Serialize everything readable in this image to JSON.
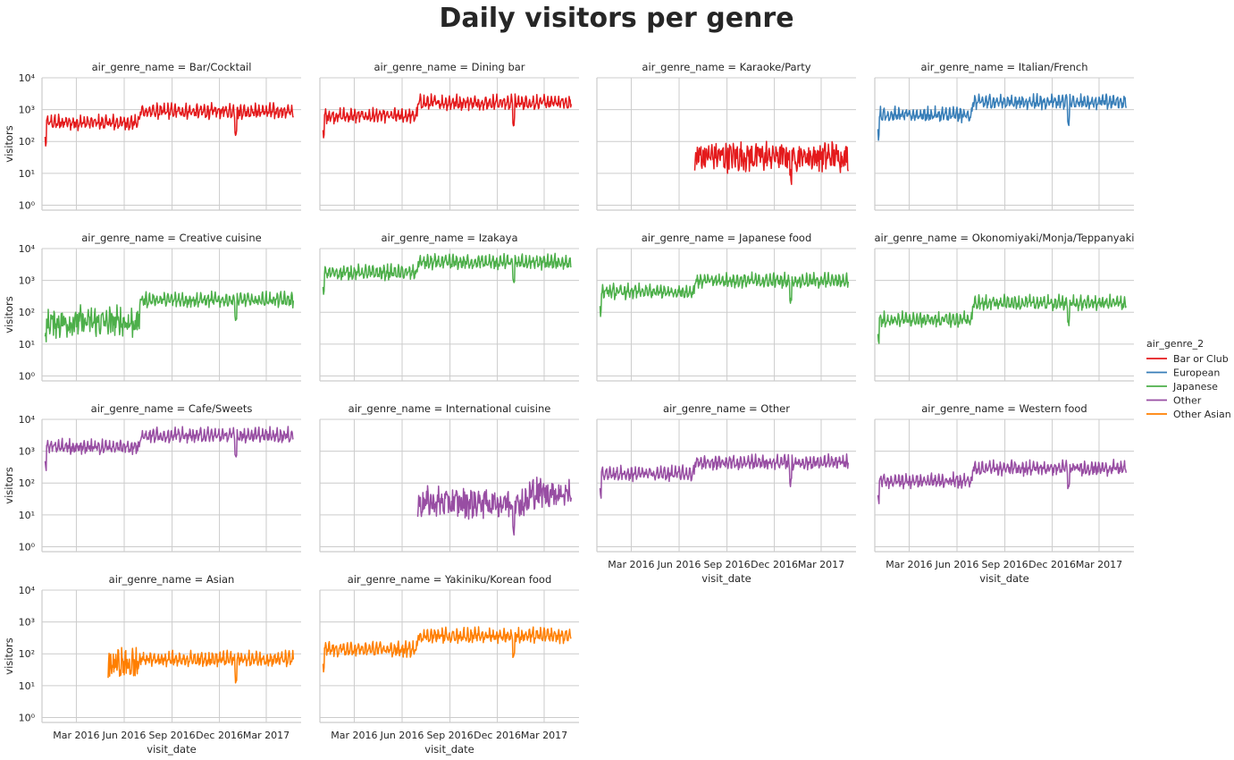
{
  "figure": {
    "title": "Daily visitors per genre"
  },
  "legend": {
    "title": "air_genre_2",
    "items": [
      {
        "label": "Bar or Club",
        "color": "#e41a1c"
      },
      {
        "label": "European",
        "color": "#377eb8"
      },
      {
        "label": "Japanese",
        "color": "#4daf4a"
      },
      {
        "label": "Other",
        "color": "#984ea3"
      },
      {
        "label": "Other Asian",
        "color": "#ff7f00"
      }
    ]
  },
  "axes_text": {
    "ylabel": "visitors",
    "xlabel": "visit_date",
    "x_ticks": [
      "Mar 2016",
      "Jun 2016",
      "Sep 2016",
      "Dec 2016",
      "Mar 2017"
    ],
    "y_ticks": [
      "10⁰",
      "10¹",
      "10²",
      "10³",
      "10⁴"
    ]
  },
  "chart_data": {
    "type": "line",
    "y_scale": "log",
    "ylim": [
      0.7,
      10000
    ],
    "xlim": [
      "2015-12-26",
      "2017-05-07"
    ],
    "grid": true,
    "legend_position": "right",
    "panels": [
      {
        "title": "air_genre_name = Bar/Cocktail",
        "genre_group": "Bar or Club",
        "start": "2016-01-01",
        "end": "2017-04-22",
        "segments": [
          {
            "from": "2016-01-01",
            "level": 400
          },
          {
            "from": "2016-07-01",
            "level": 900
          }
        ]
      },
      {
        "title": "air_genre_name = Dining bar",
        "genre_group": "Bar or Club",
        "start": "2016-01-01",
        "end": "2017-04-22",
        "segments": [
          {
            "from": "2016-01-01",
            "level": 650
          },
          {
            "from": "2016-07-01",
            "level": 1700
          }
        ]
      },
      {
        "title": "air_genre_name = Karaoke/Party",
        "genre_group": "Bar or Club",
        "start": "2016-07-01",
        "end": "2017-04-22",
        "segments": [
          {
            "from": "2016-07-01",
            "level": 35
          }
        ]
      },
      {
        "title": "air_genre_name = Italian/French",
        "genre_group": "European",
        "start": "2016-01-01",
        "end": "2017-04-22",
        "segments": [
          {
            "from": "2016-01-01",
            "level": 700
          },
          {
            "from": "2016-07-01",
            "level": 1800
          }
        ]
      },
      {
        "title": "air_genre_name = Creative cuisine",
        "genre_group": "Japanese",
        "start": "2016-01-01",
        "end": "2017-04-22",
        "segments": [
          {
            "from": "2016-01-01",
            "level": 50
          },
          {
            "from": "2016-07-01",
            "level": 250
          }
        ]
      },
      {
        "title": "air_genre_name = Izakaya",
        "genre_group": "Japanese",
        "start": "2016-01-01",
        "end": "2017-04-22",
        "segments": [
          {
            "from": "2016-01-01",
            "level": 1800
          },
          {
            "from": "2016-07-01",
            "level": 3800
          }
        ]
      },
      {
        "title": "air_genre_name = Japanese food",
        "genre_group": "Japanese",
        "start": "2016-01-01",
        "end": "2017-04-22",
        "segments": [
          {
            "from": "2016-01-01",
            "level": 450
          },
          {
            "from": "2016-07-01",
            "level": 1000
          }
        ]
      },
      {
        "title": "air_genre_name = Okonomiyaki/Monja/Teppanyaki",
        "genre_group": "Japanese",
        "start": "2016-01-01",
        "end": "2017-04-22",
        "segments": [
          {
            "from": "2016-01-01",
            "level": 60
          },
          {
            "from": "2016-07-01",
            "level": 200
          }
        ]
      },
      {
        "title": "air_genre_name = Cafe/Sweets",
        "genre_group": "Other",
        "start": "2016-01-01",
        "end": "2017-04-22",
        "segments": [
          {
            "from": "2016-01-01",
            "level": 1400
          },
          {
            "from": "2016-07-01",
            "level": 3200
          }
        ]
      },
      {
        "title": "air_genre_name = International cuisine",
        "genre_group": "Other",
        "start": "2016-07-01",
        "end": "2017-04-22",
        "segments": [
          {
            "from": "2016-07-01",
            "level": 25
          },
          {
            "from": "2017-02-01",
            "level": 50
          }
        ]
      },
      {
        "title": "air_genre_name = Other",
        "genre_group": "Other",
        "start": "2016-01-01",
        "end": "2017-04-22",
        "segments": [
          {
            "from": "2016-01-01",
            "level": 200
          },
          {
            "from": "2016-07-01",
            "level": 450
          }
        ]
      },
      {
        "title": "air_genre_name = Western food",
        "genre_group": "Other",
        "start": "2016-01-01",
        "end": "2017-04-22",
        "segments": [
          {
            "from": "2016-01-01",
            "level": 120
          },
          {
            "from": "2016-07-01",
            "level": 300
          }
        ]
      },
      {
        "title": "air_genre_name = Asian",
        "genre_group": "Other Asian",
        "start": "2016-05-01",
        "end": "2017-04-22",
        "segments": [
          {
            "from": "2016-05-01",
            "level": 50
          },
          {
            "from": "2016-07-01",
            "level": 70
          }
        ]
      },
      {
        "title": "air_genre_name = Yakiniku/Korean food",
        "genre_group": "Other Asian",
        "start": "2016-01-01",
        "end": "2017-04-22",
        "segments": [
          {
            "from": "2016-01-01",
            "level": 140
          },
          {
            "from": "2016-07-01",
            "level": 380
          }
        ]
      }
    ]
  }
}
